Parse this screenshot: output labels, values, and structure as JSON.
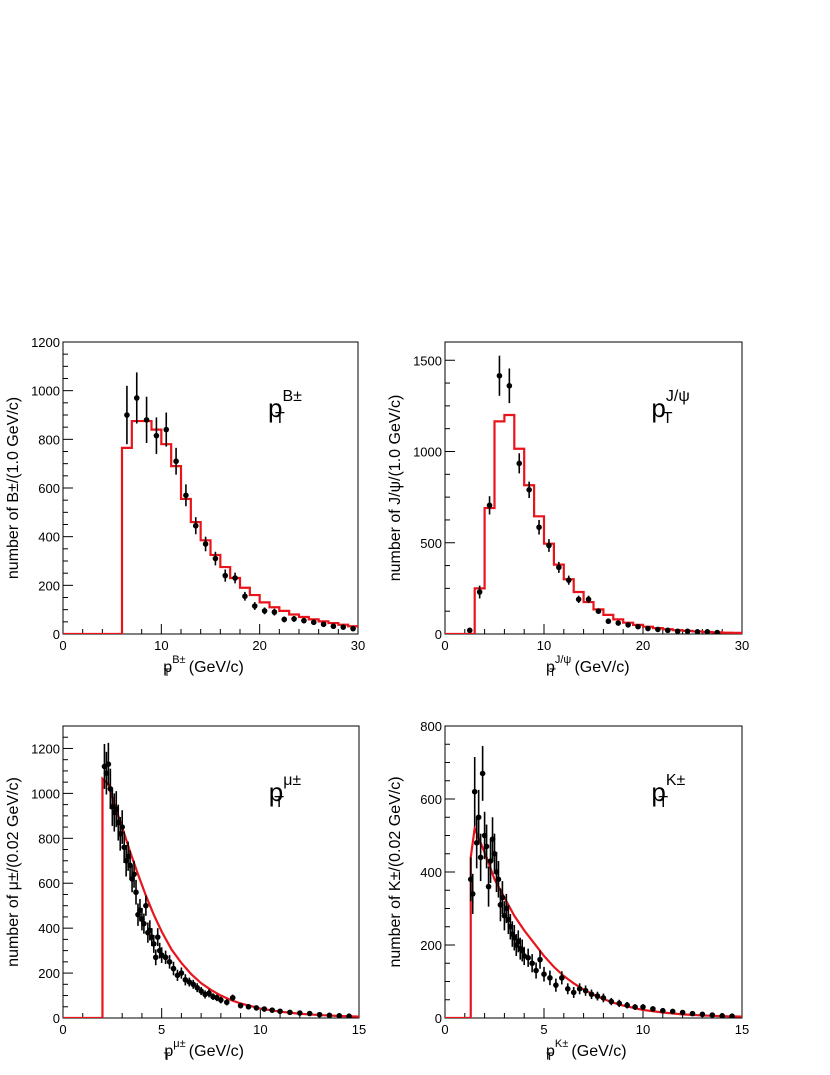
{
  "chart_data": [
    {
      "type": "histogram",
      "id": "pt-b",
      "tag": {
        "main": "p",
        "sub": "T",
        "sup": "B±"
      },
      "xlabel": {
        "main": "p",
        "sub": "T",
        "sup": "B±",
        "rest": " (GeV/c)"
      },
      "ylabel": "number of B±/(1.0 GeV/c)",
      "xlim": [
        0,
        30
      ],
      "ylim": [
        0,
        1200
      ],
      "xticks": [
        0,
        10,
        20,
        30
      ],
      "yticks": [
        0,
        200,
        400,
        600,
        800,
        1000,
        1200
      ],
      "series": [
        {
          "kind": "step",
          "color": "#e8141c",
          "edges": [
            0,
            1,
            2,
            3,
            4,
            5,
            6,
            7,
            8,
            9,
            10,
            11,
            12,
            13,
            14,
            15,
            16,
            17,
            18,
            19,
            20,
            21,
            22,
            23,
            24,
            25,
            26,
            27,
            28,
            29,
            30
          ],
          "values": [
            0,
            0,
            0,
            0,
            0,
            0,
            765,
            875,
            875,
            840,
            780,
            690,
            555,
            460,
            385,
            325,
            275,
            230,
            190,
            160,
            130,
            110,
            95,
            80,
            70,
            60,
            52,
            45,
            38,
            32,
            25
          ]
        },
        {
          "kind": "points",
          "color": "#000000",
          "x": [
            6.5,
            7.5,
            8.5,
            9.5,
            10.5,
            11.5,
            12.5,
            13.5,
            14.5,
            15.5,
            16.5,
            17.5,
            18.5,
            19.5,
            20.5,
            21.5,
            22.5,
            23.5,
            24.5,
            25.5,
            26.5,
            27.5,
            28.5,
            29.5
          ],
          "y": [
            900,
            970,
            880,
            815,
            840,
            710,
            570,
            445,
            370,
            310,
            240,
            230,
            155,
            115,
            95,
            90,
            60,
            62,
            55,
            48,
            40,
            32,
            28,
            22
          ],
          "err": [
            120,
            105,
            95,
            75,
            70,
            55,
            45,
            35,
            30,
            28,
            25,
            22,
            18,
            16,
            14,
            14,
            12,
            12,
            11,
            10,
            10,
            9,
            8,
            8
          ]
        }
      ]
    },
    {
      "type": "histogram",
      "id": "pt-jpsi",
      "tag": {
        "main": "p",
        "sub": "T",
        "sup": "J/ψ"
      },
      "xlabel": {
        "main": "p",
        "sub": "T",
        "sup": "J/ψ",
        "rest": " (GeV/c)"
      },
      "ylabel": "number of J/ψ/(1.0 GeV/c)",
      "xlim": [
        0,
        30
      ],
      "ylim": [
        0,
        1600
      ],
      "xticks": [
        0,
        10,
        20,
        30
      ],
      "yticks": [
        0,
        500,
        1000,
        1500
      ],
      "series": [
        {
          "kind": "step",
          "color": "#e8141c",
          "edges": [
            0,
            1,
            2,
            3,
            4,
            5,
            6,
            7,
            8,
            9,
            10,
            11,
            12,
            13,
            14,
            15,
            16,
            17,
            18,
            19,
            20,
            21,
            22,
            23,
            24,
            25,
            26,
            27,
            28,
            29,
            30
          ],
          "values": [
            0,
            0,
            0,
            250,
            690,
            1165,
            1200,
            1015,
            815,
            645,
            495,
            380,
            300,
            230,
            175,
            135,
            105,
            80,
            62,
            50,
            40,
            32,
            26,
            21,
            17,
            14,
            11,
            9,
            7,
            6,
            5
          ]
        },
        {
          "kind": "points",
          "color": "#000000",
          "x": [
            2.5,
            3.5,
            4.5,
            5.5,
            6.5,
            7.5,
            8.5,
            9.5,
            10.5,
            11.5,
            12.5,
            13.5,
            14.5,
            15.5,
            16.5,
            17.5,
            18.5,
            19.5,
            20.5,
            21.5,
            22.5,
            23.5,
            24.5,
            25.5,
            26.5,
            27.5
          ],
          "y": [
            20,
            230,
            705,
            1415,
            1360,
            935,
            790,
            585,
            485,
            365,
            295,
            190,
            190,
            125,
            70,
            60,
            50,
            40,
            30,
            25,
            20,
            15,
            15,
            12,
            12,
            8
          ],
          "err": [
            10,
            35,
            50,
            110,
            95,
            55,
            45,
            40,
            35,
            30,
            25,
            20,
            20,
            15,
            12,
            10,
            10,
            8,
            8,
            7,
            6,
            6,
            5,
            5,
            5,
            4
          ]
        }
      ]
    },
    {
      "type": "histogram",
      "id": "pt-mu",
      "tag": {
        "main": "p",
        "sub": "T",
        "sup": "μ±"
      },
      "xlabel": {
        "main": "p",
        "sub": "T",
        "sup": "μ±",
        "rest": " (GeV/c)"
      },
      "ylabel": "number of μ±/(0.02 GeV/c)",
      "xlim": [
        0,
        15
      ],
      "ylim": [
        0,
        1300
      ],
      "xticks": [
        0,
        5,
        10,
        15
      ],
      "yticks": [
        0,
        200,
        400,
        600,
        800,
        1000,
        1200
      ],
      "series": [
        {
          "kind": "curve",
          "color": "#e8141c",
          "x": [
            0,
            2,
            2,
            2.3,
            2.6,
            3,
            3.4,
            3.8,
            4.2,
            4.6,
            5,
            5.5,
            6,
            6.5,
            7,
            7.5,
            8,
            8.5,
            9,
            10,
            11,
            12,
            13,
            14,
            15
          ],
          "y": [
            0,
            0,
            1065,
            1040,
            950,
            850,
            740,
            640,
            545,
            460,
            385,
            305,
            245,
            195,
            155,
            125,
            100,
            80,
            65,
            42,
            28,
            19,
            13,
            9,
            6
          ]
        },
        {
          "kind": "points",
          "color": "#000000",
          "x": [
            2.1,
            2.2,
            2.3,
            2.4,
            2.5,
            2.6,
            2.7,
            2.8,
            2.9,
            3.0,
            3.1,
            3.2,
            3.3,
            3.4,
            3.5,
            3.6,
            3.7,
            3.8,
            3.9,
            4.0,
            4.1,
            4.2,
            4.3,
            4.4,
            4.5,
            4.6,
            4.7,
            4.8,
            4.9,
            5.0,
            5.2,
            5.4,
            5.6,
            5.8,
            6.0,
            6.2,
            6.4,
            6.6,
            6.8,
            7.0,
            7.2,
            7.4,
            7.6,
            7.8,
            8.0,
            8.3,
            8.6,
            9.0,
            9.4,
            9.8,
            10.2,
            10.6,
            11.0,
            11.5,
            12.0,
            12.5,
            13.0,
            13.5,
            14.0,
            14.5
          ],
          "y": [
            1120,
            1090,
            1130,
            1020,
            940,
            915,
            930,
            870,
            820,
            850,
            760,
            700,
            720,
            680,
            620,
            640,
            560,
            460,
            480,
            440,
            420,
            500,
            380,
            390,
            360,
            330,
            270,
            360,
            300,
            280,
            270,
            250,
            220,
            190,
            200,
            170,
            160,
            150,
            135,
            120,
            105,
            110,
            95,
            90,
            80,
            70,
            90,
            55,
            50,
            45,
            40,
            35,
            30,
            25,
            22,
            20,
            15,
            12,
            10,
            8
          ],
          "err": [
            100,
            95,
            95,
            90,
            85,
            85,
            80,
            80,
            75,
            75,
            70,
            70,
            65,
            65,
            60,
            60,
            55,
            50,
            50,
            50,
            45,
            45,
            45,
            45,
            40,
            40,
            35,
            40,
            35,
            35,
            30,
            30,
            30,
            25,
            25,
            25,
            20,
            20,
            20,
            18,
            18,
            18,
            15,
            15,
            15,
            14,
            14,
            12,
            12,
            10,
            10,
            9,
            8,
            7,
            7,
            6,
            6,
            5,
            5,
            4
          ]
        }
      ]
    },
    {
      "type": "histogram",
      "id": "pt-k",
      "tag": {
        "main": "p",
        "sub": "T",
        "sup": "K±"
      },
      "xlabel": {
        "main": "p",
        "sub": "T",
        "sup": "K±",
        "rest": " (GeV/c)"
      },
      "ylabel": "number of K±/(0.02 GeV/c)",
      "xlim": [
        0,
        15
      ],
      "ylim": [
        0,
        800
      ],
      "xticks": [
        0,
        5,
        10,
        15
      ],
      "yticks": [
        0,
        200,
        400,
        600,
        800
      ],
      "series": [
        {
          "kind": "curve",
          "color": "#e8141c",
          "x": [
            0,
            1.3,
            1.3,
            1.5,
            1.8,
            2.1,
            2.5,
            3,
            3.5,
            4,
            4.5,
            5,
            5.5,
            6,
            6.5,
            7,
            7.5,
            8,
            8.5,
            9,
            10,
            11,
            12,
            13,
            14,
            15
          ],
          "y": [
            0,
            0,
            440,
            520,
            480,
            440,
            380,
            330,
            280,
            240,
            205,
            170,
            140,
            115,
            95,
            78,
            64,
            52,
            42,
            34,
            22,
            15,
            10,
            7,
            5,
            4
          ]
        },
        {
          "kind": "points",
          "color": "#000000",
          "x": [
            1.3,
            1.4,
            1.5,
            1.6,
            1.7,
            1.8,
            1.9,
            2.0,
            2.1,
            2.2,
            2.3,
            2.4,
            2.5,
            2.6,
            2.7,
            2.8,
            2.9,
            3.0,
            3.1,
            3.2,
            3.3,
            3.4,
            3.5,
            3.6,
            3.7,
            3.8,
            3.9,
            4.0,
            4.2,
            4.4,
            4.6,
            4.8,
            5.0,
            5.3,
            5.6,
            5.9,
            6.2,
            6.5,
            6.8,
            7.1,
            7.4,
            7.7,
            8.0,
            8.4,
            8.8,
            9.2,
            9.6,
            10.0,
            10.5,
            11.0,
            11.5,
            12.0,
            12.5,
            13.0,
            13.5,
            14.0,
            14.5
          ],
          "y": [
            380,
            340,
            620,
            480,
            550,
            440,
            670,
            500,
            470,
            360,
            430,
            490,
            450,
            400,
            380,
            310,
            330,
            280,
            300,
            270,
            250,
            230,
            220,
            200,
            210,
            190,
            185,
            170,
            165,
            150,
            130,
            160,
            120,
            110,
            90,
            110,
            80,
            70,
            80,
            75,
            65,
            60,
            55,
            45,
            40,
            35,
            30,
            30,
            25,
            20,
            18,
            15,
            12,
            10,
            8,
            6,
            5
          ],
          "err": [
            60,
            55,
            95,
            70,
            75,
            65,
            75,
            65,
            60,
            55,
            60,
            60,
            55,
            55,
            50,
            45,
            45,
            40,
            40,
            40,
            35,
            35,
            35,
            30,
            30,
            30,
            30,
            25,
            25,
            25,
            22,
            25,
            20,
            20,
            18,
            18,
            15,
            15,
            15,
            14,
            13,
            12,
            12,
            10,
            10,
            9,
            8,
            8,
            7,
            6,
            6,
            5,
            5,
            4,
            4,
            3,
            3
          ]
        }
      ]
    }
  ]
}
